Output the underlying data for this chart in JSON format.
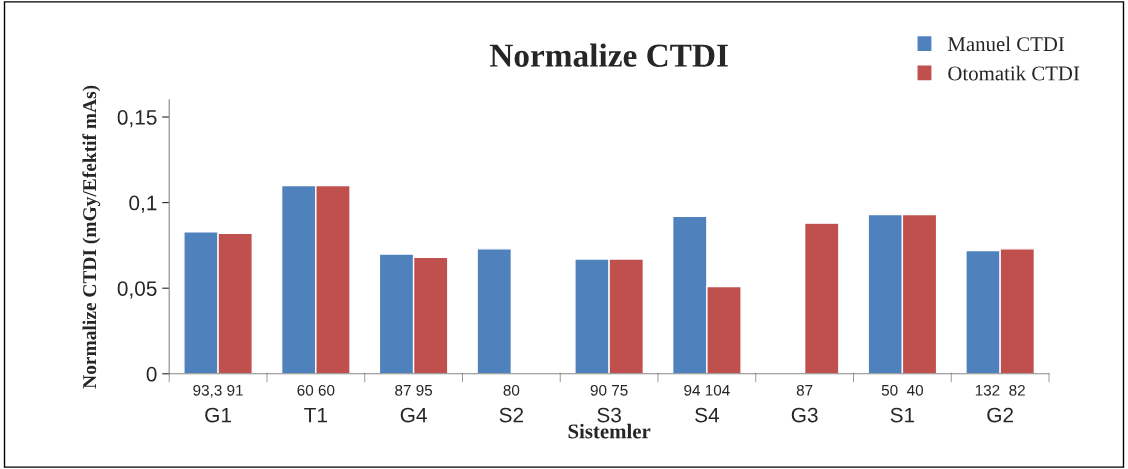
{
  "chart_data": {
    "type": "bar",
    "title": "Normalize CTDI",
    "xlabel": "Sistemler",
    "ylabel": "Normalize CTDI (mGy/Efektif mAs)",
    "categories": [
      "G1",
      "T1",
      "G4",
      "S2",
      "S3",
      "S4",
      "G3",
      "S1",
      "G2"
    ],
    "series": [
      {
        "name": "Manuel CTDI",
        "color": "#4f81bd",
        "values": [
          0.083,
          0.11,
          0.07,
          0.073,
          0.067,
          0.092,
          null,
          0.093,
          0.072
        ]
      },
      {
        "name": "Otomatik CTDI",
        "color": "#c0504d",
        "values": [
          0.082,
          0.11,
          0.068,
          null,
          0.067,
          0.051,
          0.088,
          0.093,
          0.073
        ]
      }
    ],
    "annotations": [
      "93,3 91",
      "60 60",
      "87 95",
      "80",
      "90 75",
      "94 104",
      "87",
      "50  40",
      "132  82"
    ],
    "ylim": [
      0,
      0.16
    ],
    "yticks": [
      0,
      {
        "value": 0.05,
        "label": "0,05"
      },
      {
        "value": 0.1,
        "label": "0,1"
      },
      {
        "value": 0.15,
        "label": "0,15"
      }
    ],
    "grid": false,
    "legend": "top right"
  }
}
